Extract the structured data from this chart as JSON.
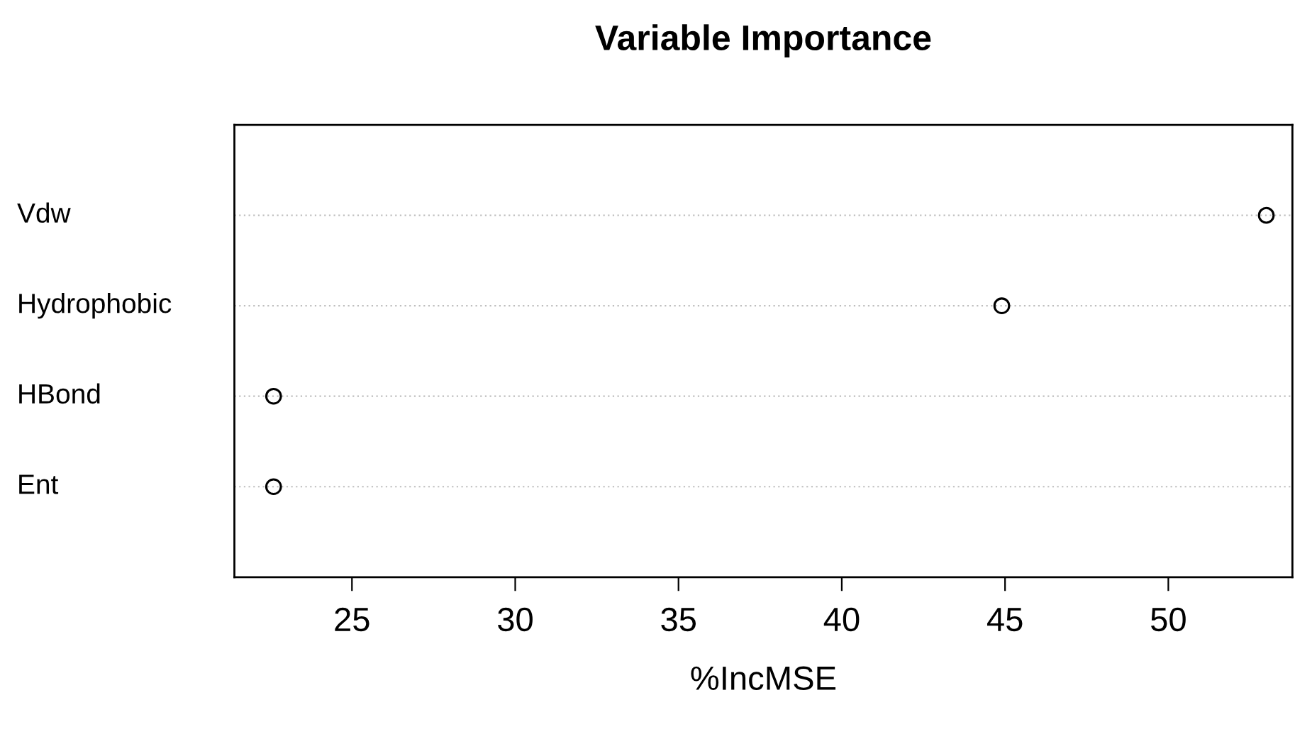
{
  "chart_data": {
    "type": "scatter",
    "title": "Variable Importance",
    "xlabel": "%IncMSE",
    "orientation": "horizontal",
    "categories": [
      "Vdw",
      "Hydrophobic",
      "HBond",
      "Ent"
    ],
    "values": [
      53.0,
      44.9,
      22.6,
      22.6
    ],
    "color": "#000000",
    "marker": "circle",
    "xlim": [
      21.4,
      53.8
    ],
    "xticks": [
      25,
      30,
      35,
      40,
      45,
      50
    ],
    "grid": "y"
  }
}
